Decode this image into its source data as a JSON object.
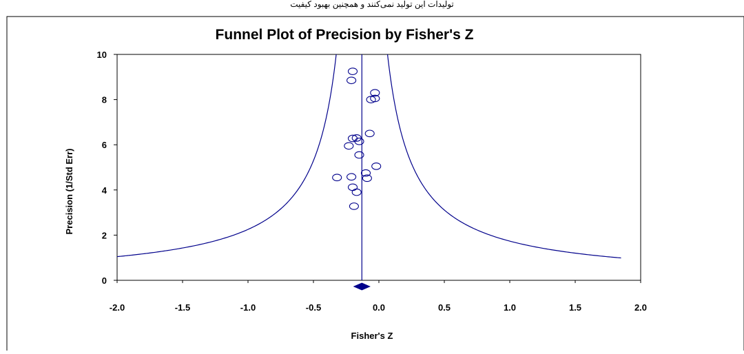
{
  "header_text": "تولیدات این تولید نمی‌کنند و همچنین بهبود کیفیت",
  "chart_data": {
    "type": "scatter",
    "title": "Funnel Plot of Precision by Fisher's Z",
    "xlabel": "Fisher's Z",
    "ylabel": "Precision (1/Std Err)",
    "xlim": [
      -2.0,
      2.0
    ],
    "ylim": [
      0,
      10
    ],
    "x_ticks": [
      "-2.0",
      "-1.5",
      "-1.0",
      "-0.5",
      "0.0",
      "0.5",
      "1.0",
      "1.5",
      "2.0"
    ],
    "y_ticks": [
      "0",
      "2",
      "4",
      "6",
      "8",
      "10"
    ],
    "grid": false,
    "summary_effect": -0.13,
    "summary_ci": [
      -0.19,
      -0.07
    ],
    "funnel": {
      "center": -0.13,
      "z": 1.96
    },
    "points": [
      {
        "x": -0.2,
        "y": 9.25
      },
      {
        "x": -0.21,
        "y": 8.85
      },
      {
        "x": -0.03,
        "y": 8.3
      },
      {
        "x": -0.06,
        "y": 8.0
      },
      {
        "x": -0.03,
        "y": 8.05
      },
      {
        "x": -0.07,
        "y": 6.5
      },
      {
        "x": -0.2,
        "y": 6.28
      },
      {
        "x": -0.17,
        "y": 6.3
      },
      {
        "x": -0.15,
        "y": 6.15
      },
      {
        "x": -0.23,
        "y": 5.95
      },
      {
        "x": -0.15,
        "y": 5.55
      },
      {
        "x": -0.02,
        "y": 5.05
      },
      {
        "x": -0.1,
        "y": 4.75
      },
      {
        "x": -0.32,
        "y": 4.55
      },
      {
        "x": -0.21,
        "y": 4.58
      },
      {
        "x": -0.09,
        "y": 4.52
      },
      {
        "x": -0.2,
        "y": 4.12
      },
      {
        "x": -0.17,
        "y": 3.9
      },
      {
        "x": -0.19,
        "y": 3.28
      }
    ],
    "colors": {
      "line": "#00008B",
      "points": "#00008B",
      "axes": "#000000"
    }
  }
}
